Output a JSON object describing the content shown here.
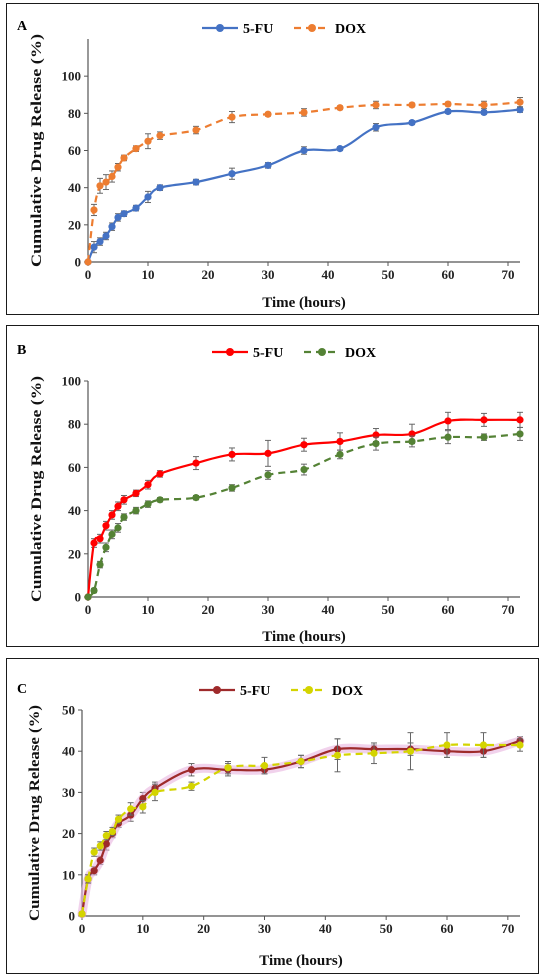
{
  "chart_data": [
    {
      "type": "line",
      "panel_label": "A",
      "xlabel": "Time (hours)",
      "ylabel": "Cumulative Drug Release (%)",
      "xlim": [
        0,
        72
      ],
      "ylim": [
        0,
        120
      ],
      "xticks": [
        0,
        10,
        20,
        30,
        40,
        50,
        60,
        70
      ],
      "yticks": [
        0,
        20,
        40,
        60,
        80,
        100
      ],
      "legend_position": "top",
      "series": [
        {
          "name": "5-FU",
          "color": "#4472C4",
          "dashed": false,
          "x": [
            0,
            1,
            2,
            3,
            4,
            5,
            6,
            8,
            10,
            12,
            18,
            24,
            30,
            36,
            42,
            48,
            54,
            60,
            66,
            72
          ],
          "y": [
            0,
            8,
            11,
            14,
            19,
            24,
            26,
            29,
            35,
            40,
            43,
            47.5,
            52,
            60,
            61,
            72.5,
            75,
            81,
            80.5,
            82
          ],
          "err": [
            0,
            3,
            2,
            2,
            2,
            2,
            1.5,
            1.5,
            3,
            1.5,
            1.5,
            3,
            1.5,
            2,
            1,
            2,
            1,
            1,
            1,
            1.5
          ]
        },
        {
          "name": "DOX",
          "color": "#ED7D31",
          "dashed": true,
          "x": [
            0,
            1,
            2,
            3,
            4,
            5,
            6,
            8,
            10,
            12,
            18,
            24,
            30,
            36,
            42,
            48,
            54,
            60,
            66,
            72
          ],
          "y": [
            0,
            28,
            41,
            43,
            46,
            51,
            56,
            61,
            65,
            68,
            71,
            78,
            79.5,
            80.5,
            83,
            84.5,
            84.5,
            85,
            84.5,
            86
          ],
          "err": [
            0,
            3,
            4,
            4,
            3,
            2,
            1.5,
            1.5,
            4,
            2,
            2,
            3,
            1,
            2,
            1,
            2,
            1,
            1,
            2,
            2.5
          ]
        }
      ]
    },
    {
      "type": "line",
      "panel_label": "B",
      "xlabel": "Time (hours)",
      "ylabel": "Cumulative Drug Release (%)",
      "xlim": [
        0,
        72
      ],
      "ylim": [
        0,
        100
      ],
      "xticks": [
        0,
        10,
        20,
        30,
        40,
        50,
        60,
        70
      ],
      "yticks": [
        0,
        20,
        40,
        60,
        80,
        100
      ],
      "legend_position": "top",
      "series": [
        {
          "name": "5-FU",
          "color": "#FF0000",
          "dashed": false,
          "x": [
            0,
            1,
            2,
            3,
            4,
            5,
            6,
            8,
            10,
            12,
            18,
            24,
            30,
            36,
            42,
            48,
            54,
            60,
            66,
            72
          ],
          "y": [
            0,
            25,
            27,
            33,
            38,
            42,
            45,
            48,
            52,
            57,
            62,
            66,
            66.5,
            70.5,
            72,
            75,
            75.5,
            81.5,
            82,
            82
          ],
          "err": [
            0,
            2,
            2,
            2,
            2,
            2,
            2,
            1.5,
            2,
            1.5,
            3,
            3,
            6,
            3,
            4,
            3,
            4.5,
            4,
            3,
            3.5
          ]
        },
        {
          "name": "DOX",
          "color": "#548235",
          "dashed": true,
          "x": [
            0,
            1,
            2,
            3,
            4,
            5,
            6,
            8,
            10,
            12,
            18,
            24,
            30,
            36,
            42,
            48,
            54,
            60,
            66,
            72
          ],
          "y": [
            0,
            3,
            15,
            23,
            29,
            32,
            37,
            40,
            43,
            45,
            46,
            50.5,
            56.5,
            59,
            66,
            71,
            72,
            74,
            74,
            75.5
          ],
          "err": [
            0,
            1,
            1.5,
            2,
            2,
            2,
            1.5,
            1.5,
            1.5,
            1,
            1,
            1.5,
            2,
            2.5,
            2,
            3,
            2.5,
            3,
            1.5,
            3
          ]
        }
      ]
    },
    {
      "type": "line",
      "panel_label": "C",
      "xlabel": "Time (hours)",
      "ylabel": "Cumulative Drug Release (%)",
      "xlim": [
        0,
        72
      ],
      "ylim": [
        0,
        50
      ],
      "xticks": [
        0,
        10,
        20,
        30,
        40,
        50,
        60,
        70
      ],
      "yticks": [
        0,
        10,
        20,
        30,
        40,
        50
      ],
      "legend_position": "top",
      "series": [
        {
          "name": "5-FU",
          "color": "#9E2A2B",
          "dashed": false,
          "glow": "#E8B4E0",
          "x": [
            0,
            1,
            2,
            3,
            4,
            5,
            6,
            8,
            10,
            12,
            18,
            24,
            30,
            36,
            42,
            48,
            54,
            60,
            66,
            72
          ],
          "y": [
            0.5,
            9,
            11,
            13.5,
            17.5,
            20,
            22.5,
            24.5,
            28.5,
            31,
            35.5,
            35.5,
            35.5,
            37.5,
            40.5,
            40.5,
            40.5,
            40,
            40,
            42.5
          ],
          "err": [
            0,
            1,
            1,
            1,
            1.5,
            1,
            1,
            1.5,
            1.5,
            1.5,
            1.5,
            1.5,
            1,
            1.5,
            2.5,
            1,
            1.5,
            1.5,
            1.5,
            1
          ]
        },
        {
          "name": "DOX",
          "color": "#D4D400",
          "dashed": true,
          "x": [
            0,
            1,
            2,
            3,
            4,
            5,
            6,
            8,
            10,
            12,
            18,
            24,
            30,
            36,
            42,
            48,
            54,
            60,
            66,
            72
          ],
          "y": [
            0.5,
            9,
            15.5,
            17,
            19.5,
            20.5,
            23.5,
            26,
            26.5,
            30,
            31.5,
            36,
            36.5,
            37.5,
            39,
            39.5,
            40,
            41.5,
            41.5,
            41.5
          ],
          "err": [
            0,
            1,
            1,
            1,
            1,
            1,
            1,
            1.5,
            1.5,
            2,
            1,
            1.5,
            2,
            1.5,
            4,
            2.5,
            4.5,
            3,
            3,
            1.5
          ]
        }
      ]
    }
  ]
}
